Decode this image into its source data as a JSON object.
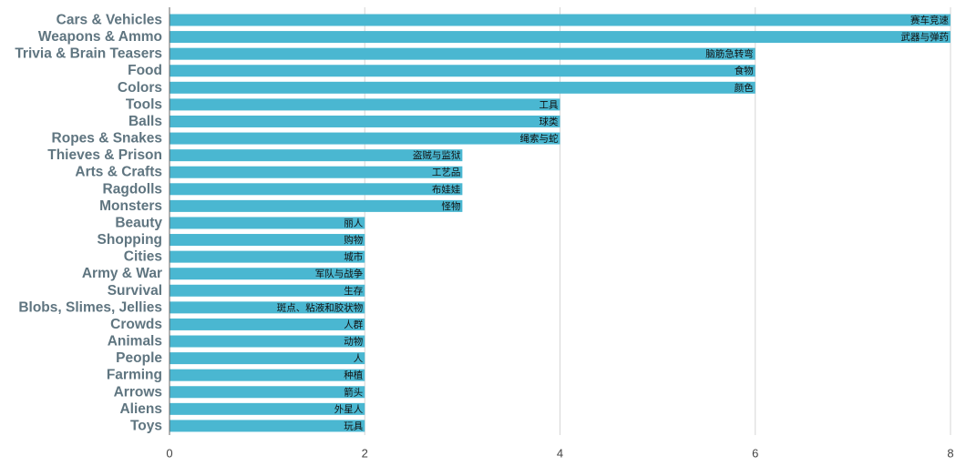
{
  "chart_data": {
    "type": "bar",
    "orientation": "horizontal",
    "title": "",
    "xlabel": "",
    "ylabel": "",
    "xlim": [
      0,
      8
    ],
    "x_ticks": [
      0,
      2,
      4,
      6,
      8
    ],
    "grid": "vertical",
    "legend": "none",
    "bar_color": "#4ab7d1",
    "categories": [
      "Cars & Vehicles",
      "Weapons & Ammo",
      "Trivia & Brain Teasers",
      "Food",
      "Colors",
      "Tools",
      "Balls",
      "Ropes & Snakes",
      "Thieves & Prison",
      "Arts & Crafts",
      "Ragdolls",
      "Monsters",
      "Beauty",
      "Shopping",
      "Cities",
      "Army & War",
      "Survival",
      "Blobs, Slimes, Jellies",
      "Crowds",
      "Animals",
      "People",
      "Farming",
      "Arrows",
      "Aliens",
      "Toys"
    ],
    "values": [
      8,
      8,
      6,
      6,
      6,
      4,
      4,
      4,
      3,
      3,
      3,
      3,
      2,
      2,
      2,
      2,
      2,
      2,
      2,
      2,
      2,
      2,
      2,
      2,
      2
    ],
    "data_labels": [
      "赛车竞速",
      "武器与弹药",
      "脑筋急转弯",
      "食物",
      "颜色",
      "工具",
      "球类",
      "绳索与蛇",
      "盗贼与监狱",
      "工艺品",
      "布娃娃",
      "怪物",
      "丽人",
      "购物",
      "城市",
      "军队与战争",
      "生存",
      "斑点、粘液和胶状物",
      "人群",
      "动物",
      "人",
      "种植",
      "箭头",
      "外星人",
      "玩具"
    ]
  }
}
